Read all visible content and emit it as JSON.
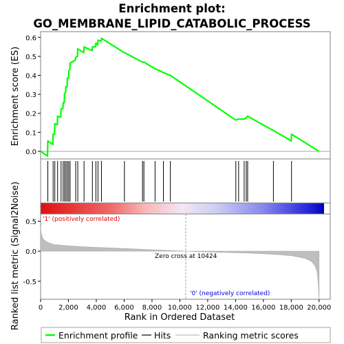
{
  "title_line1": "Enrichment plot:",
  "title_line2": "GO_MEMBRANE_LIPID_CATABOLIC_PROCESS",
  "colors": {
    "enrichment": "#00ff00",
    "hits": "#000000",
    "metric_fill": "#bebebe",
    "positive": "#ff0000",
    "negative": "#0000ff",
    "zero_line": "#a0a0a0",
    "panel_border": "#7f7f7f"
  },
  "legend": {
    "enrichment_label": "Enrichment profile",
    "hits_label": "Hits",
    "metric_label": "Ranking metric scores"
  },
  "annotations": {
    "positive_label": "'1' (positively correlated)",
    "negative_label": "'0' (negatively correlated)",
    "zero_cross": "Zero cross at 10424"
  },
  "chart_data": [
    {
      "type": "line",
      "name": "enrichment-profile",
      "ylabel": "Enrichment score (ES)",
      "xlim": [
        0,
        20800
      ],
      "ylim": [
        -0.04,
        0.63
      ],
      "yticks": [
        0.0,
        0.1,
        0.2,
        0.3,
        0.4,
        0.5,
        0.6
      ],
      "ytick_labels": [
        "0.0",
        "0.1",
        "0.2",
        "0.3",
        "0.4",
        "0.5",
        "0.6"
      ],
      "grid": false,
      "x": [
        0,
        500,
        520,
        880,
        900,
        1000,
        1020,
        1200,
        1220,
        1450,
        1470,
        1600,
        1620,
        1700,
        1720,
        1800,
        1820,
        1900,
        1920,
        2000,
        2020,
        2100,
        2120,
        2500,
        2520,
        2650,
        2670,
        3100,
        3120,
        3700,
        3720,
        3950,
        3970,
        4100,
        4120,
        4350,
        4370,
        6000,
        6020,
        7300,
        7320,
        7400,
        7420,
        8200,
        8220,
        8800,
        8820,
        9300,
        9320,
        14000,
        14020,
        14200,
        14220,
        14600,
        14620,
        14750,
        14770,
        14850,
        14870,
        16700,
        16720,
        18000,
        18020,
        20000
      ],
      "y": [
        0.0,
        -0.025,
        0.055,
        0.035,
        0.09,
        0.09,
        0.145,
        0.14,
        0.185,
        0.18,
        0.225,
        0.225,
        0.255,
        0.255,
        0.305,
        0.31,
        0.34,
        0.34,
        0.385,
        0.385,
        0.425,
        0.43,
        0.465,
        0.48,
        0.495,
        0.5,
        0.54,
        0.52,
        0.55,
        0.53,
        0.55,
        0.55,
        0.57,
        0.56,
        0.585,
        0.58,
        0.595,
        0.52,
        0.52,
        0.47,
        0.47,
        0.47,
        0.47,
        0.435,
        0.435,
        0.415,
        0.415,
        0.4,
        0.4,
        0.165,
        0.165,
        0.17,
        0.17,
        0.17,
        0.17,
        0.175,
        0.175,
        0.185,
        0.185,
        0.11,
        0.11,
        0.055,
        0.09,
        0.0
      ]
    },
    {
      "type": "scatter",
      "name": "hits",
      "x": [
        520,
        900,
        1020,
        1220,
        1470,
        1620,
        1720,
        1820,
        1920,
        2020,
        2120,
        2520,
        2670,
        3120,
        3720,
        3970,
        4120,
        4370,
        6020,
        7320,
        7420,
        8220,
        8820,
        9320,
        14020,
        14220,
        14620,
        14770,
        14870,
        16720,
        18020
      ]
    },
    {
      "type": "area",
      "name": "ranking-metric",
      "xlabel": "Rank in Ordered Dataset",
      "ylabel": "Ranked list metric (Signal2Noise)",
      "xlim": [
        0,
        20800
      ],
      "ylim": [
        -0.8,
        0.62
      ],
      "xticks": [
        0,
        2000,
        4000,
        6000,
        8000,
        10000,
        12000,
        14000,
        16000,
        18000,
        20000
      ],
      "xtick_labels": [
        "0",
        "2,000",
        "4,000",
        "6,000",
        "8,000",
        "10,000",
        "12,000",
        "14,000",
        "16,000",
        "18,000",
        "20,000"
      ],
      "yticks": [
        -0.5,
        0.0,
        0.5
      ],
      "ytick_labels": [
        "-0.5",
        "0.0",
        "0.5"
      ],
      "x": [
        0,
        30,
        100,
        200,
        400,
        700,
        1000,
        1500,
        2000,
        3000,
        4000,
        5000,
        6000,
        7000,
        8000,
        9000,
        10424,
        12000,
        14000,
        15000,
        16000,
        17000,
        18000,
        18500,
        19000,
        19300,
        19500,
        19700,
        19850,
        19950,
        20000
      ],
      "y": [
        0.4,
        0.32,
        0.25,
        0.2,
        0.16,
        0.13,
        0.11,
        0.1,
        0.09,
        0.075,
        0.065,
        0.055,
        0.045,
        0.035,
        0.025,
        0.015,
        0.0,
        -0.012,
        -0.025,
        -0.032,
        -0.042,
        -0.055,
        -0.075,
        -0.095,
        -0.12,
        -0.15,
        -0.18,
        -0.24,
        -0.34,
        -0.55,
        -0.85
      ]
    }
  ]
}
